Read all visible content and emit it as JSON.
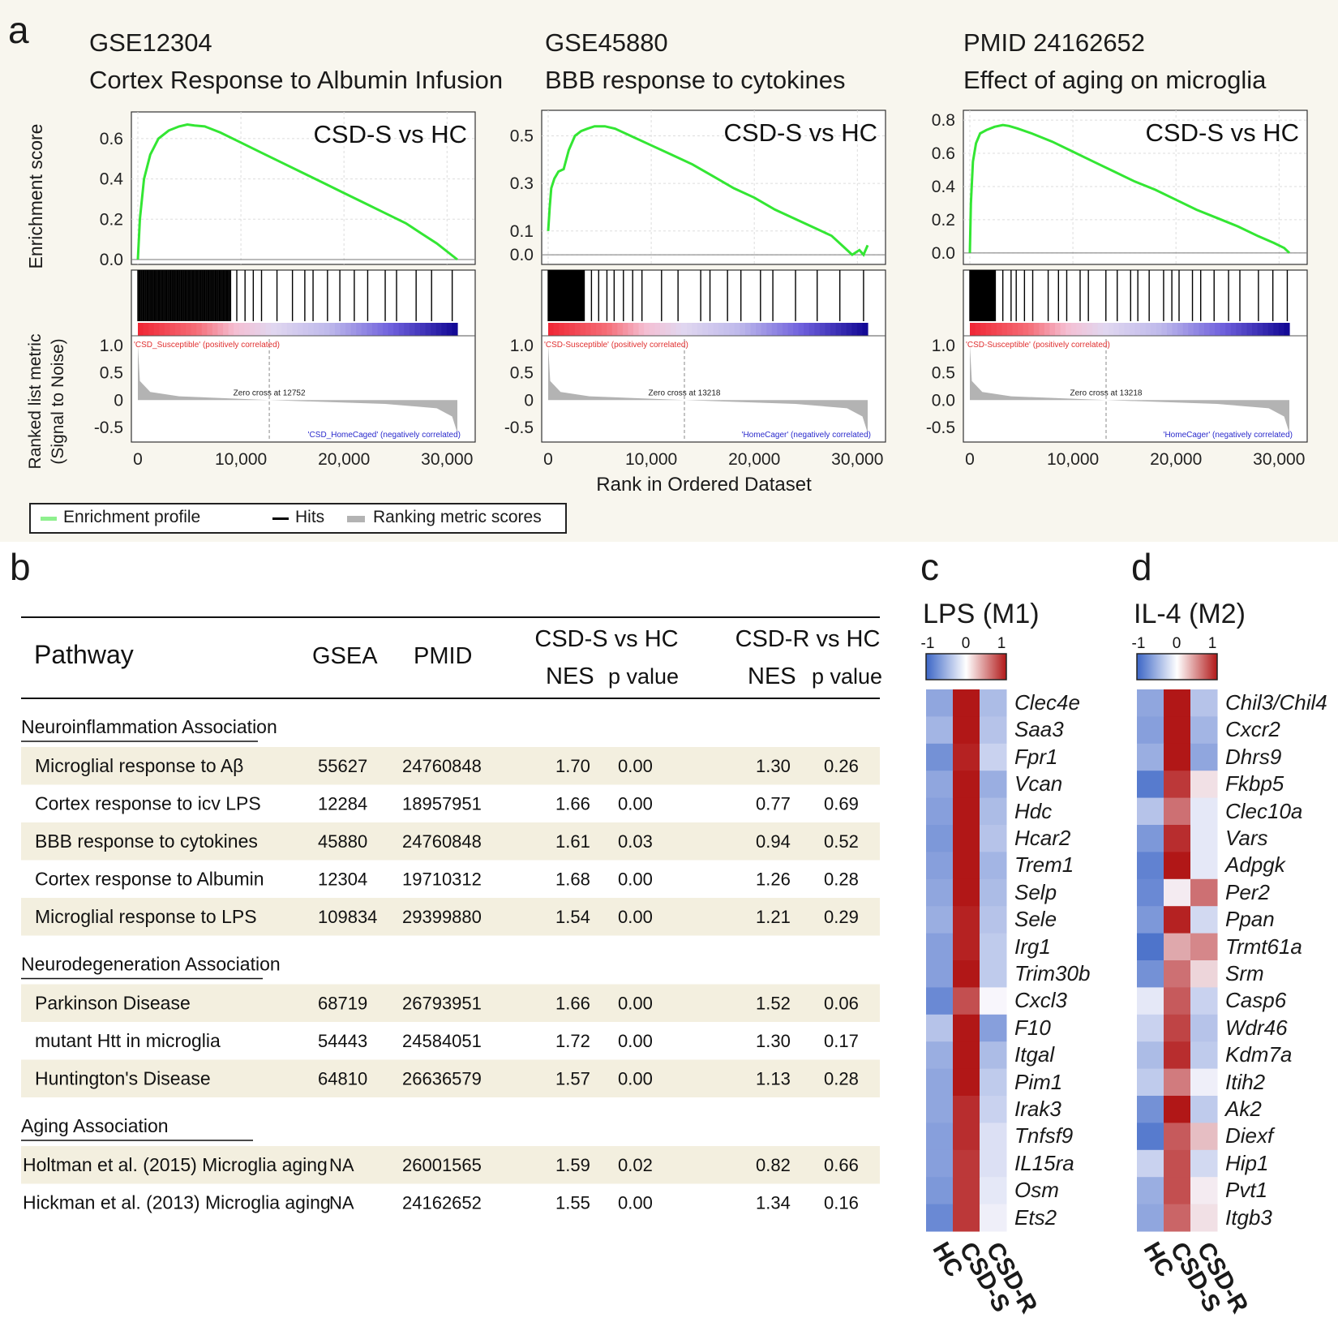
{
  "panels": {
    "a": {
      "letter": "a",
      "x_axis_label": "Rank in Ordered Dataset",
      "y_label_top": "Enrichment score",
      "y_label_bottom_1": "Ranked list metric",
      "y_label_bottom_2": "(Signal to Noise)",
      "legend": {
        "enrichment": "Enrichment profile",
        "hits": "Hits",
        "ranking": "Ranking metric scores"
      }
    },
    "b": {
      "letter": "b"
    },
    "c": {
      "letter": "c"
    },
    "d": {
      "letter": "d"
    }
  },
  "colors": {
    "enrichment": "#33e633",
    "hits": "#000000",
    "ranking": "#b3b3b3",
    "row_shade": "#f3efdf",
    "heat_neg": "#3b65c6",
    "heat_pos": "#b11717"
  },
  "chart_data": [
    {
      "type": "line",
      "id": "gsea-1",
      "title_line1": "GSE12304",
      "title_line2": "Cortex Response to Albumin Infusion",
      "comparison": "CSD-S vs HC",
      "xlabel": "Rank in Ordered Dataset",
      "ylabel": "Enrichment score",
      "xlim": [
        0,
        31000
      ],
      "x_ticks": [
        0,
        10000,
        20000,
        30000
      ],
      "x_tick_labels": [
        "0",
        "10,000",
        "20,000",
        "30,000"
      ],
      "es_ylim": [
        0,
        0.7
      ],
      "es_ticks": [
        0.0,
        0.2,
        0.4,
        0.6
      ],
      "es_tick_labels": [
        "0.0",
        "0.2",
        "0.4",
        "0.6"
      ],
      "es_curve": {
        "x": [
          0,
          200,
          600,
          1200,
          2000,
          3000,
          4000,
          4800,
          5500,
          6500,
          8000,
          10000,
          12000,
          14000,
          16000,
          18000,
          20000,
          22000,
          24000,
          26000,
          27500,
          29000,
          30500,
          31000
        ],
        "y": [
          0.0,
          0.2,
          0.4,
          0.52,
          0.6,
          0.64,
          0.66,
          0.67,
          0.665,
          0.66,
          0.63,
          0.58,
          0.53,
          0.48,
          0.43,
          0.38,
          0.33,
          0.28,
          0.23,
          0.18,
          0.13,
          0.08,
          0.02,
          0.0
        ]
      },
      "hits_dense_end": 9000,
      "hits_sparse": [
        9600,
        10400,
        11200,
        12000,
        13500,
        15000,
        16200,
        17000,
        18400,
        19600,
        21000,
        22300,
        24000,
        25100,
        27000,
        28500,
        30500
      ],
      "metric_ylim": [
        -0.5,
        1.0
      ],
      "metric_ticks": [
        1.0,
        0.5,
        0,
        -0.5
      ],
      "metric_tick_labels": [
        "1.0",
        "0.5",
        "0",
        "-0.5"
      ],
      "metric_pos_at_start": 1.0,
      "metric_neg_at_end": -0.6,
      "zero_cross": 12752,
      "zero_cross_label": "Zero cross at 12752",
      "pos_label": "'CSD_Susceptible' (positively correlated)",
      "neg_label": "'CSD_HomeCaged' (negatively correlated)"
    },
    {
      "type": "line",
      "id": "gsea-2",
      "title_line1": "GSE45880",
      "title_line2": "BBB response to cytokines",
      "comparison": "CSD-S vs HC",
      "xlabel": "Rank in Ordered Dataset",
      "ylabel": "Enrichment score",
      "xlim": [
        0,
        31000
      ],
      "x_ticks": [
        0,
        10000,
        20000,
        30000
      ],
      "x_tick_labels": [
        "0",
        "10,000",
        "20,000",
        "30,000"
      ],
      "es_ylim": [
        -0.02,
        0.58
      ],
      "es_ticks": [
        0.0,
        0.1,
        0.3,
        0.5
      ],
      "es_tick_labels": [
        "0.0",
        "0.1",
        "0.3",
        "0.5"
      ],
      "es_curve": {
        "x": [
          0,
          150,
          300,
          600,
          1000,
          1500,
          2000,
          2600,
          3200,
          3800,
          4500,
          5500,
          6500,
          8000,
          10000,
          12000,
          14000,
          16000,
          18000,
          20000,
          22000,
          24000,
          26000,
          27500,
          28500,
          29500,
          30200,
          30600,
          31000
        ],
        "y": [
          0.1,
          0.2,
          0.28,
          0.32,
          0.35,
          0.36,
          0.44,
          0.5,
          0.52,
          0.53,
          0.54,
          0.54,
          0.53,
          0.5,
          0.46,
          0.42,
          0.38,
          0.33,
          0.28,
          0.24,
          0.19,
          0.15,
          0.11,
          0.08,
          0.04,
          0.0,
          0.02,
          0.0,
          0.04
        ]
      },
      "hits_dense_end": 3500,
      "hits_sparse": [
        4200,
        4900,
        5700,
        6400,
        7300,
        8200,
        9100,
        11000,
        12600,
        14800,
        15700,
        17400,
        18700,
        20600,
        21800,
        24000,
        26100,
        28300,
        30600
      ],
      "metric_ylim": [
        -0.5,
        1.0
      ],
      "metric_ticks": [
        1.0,
        0.5,
        0,
        -0.5
      ],
      "metric_tick_labels": [
        "1.0",
        "0.5",
        "0",
        "-0.5"
      ],
      "metric_pos_at_start": 1.0,
      "metric_neg_at_end": -0.6,
      "zero_cross": 13218,
      "zero_cross_label": "Zero cross at 13218",
      "pos_label": "'CSD-Susceptible' (positively correlated)",
      "neg_label": "'HomeCager' (negatively correlated)"
    },
    {
      "type": "line",
      "id": "gsea-3",
      "title_line1": "PMID 24162652",
      "title_line2": "Effect of aging on microglia",
      "comparison": "CSD-S vs HC",
      "xlabel": "Rank in Ordered Dataset",
      "ylabel": "Enrichment score",
      "xlim": [
        0,
        31000
      ],
      "x_ticks": [
        0,
        10000,
        20000,
        30000
      ],
      "x_tick_labels": [
        "0",
        "10,000",
        "20,000",
        "30,000"
      ],
      "es_ylim": [
        -0.04,
        0.82
      ],
      "es_ticks": [
        0.0,
        0.2,
        0.4,
        0.6,
        0.8
      ],
      "es_tick_labels": [
        "0.0",
        "0.2",
        "0.4",
        "0.6",
        "0.8"
      ],
      "es_curve": {
        "x": [
          0,
          100,
          300,
          600,
          1000,
          1600,
          2400,
          3200,
          3800,
          4600,
          6000,
          8000,
          10000,
          12000,
          14000,
          16000,
          18000,
          20000,
          22000,
          24000,
          26000,
          28000,
          29500,
          30500,
          31000
        ],
        "y": [
          0.0,
          0.3,
          0.55,
          0.66,
          0.72,
          0.74,
          0.76,
          0.77,
          0.765,
          0.75,
          0.72,
          0.67,
          0.61,
          0.55,
          0.49,
          0.43,
          0.38,
          0.32,
          0.26,
          0.21,
          0.16,
          0.1,
          0.06,
          0.03,
          0.0
        ]
      },
      "hits_dense_end": 2500,
      "hits_sparse": [
        3200,
        4000,
        4500,
        5300,
        6100,
        7600,
        8600,
        9400,
        10700,
        11500,
        13200,
        14300,
        15600,
        16300,
        17400,
        18800,
        19600,
        20300,
        21600,
        22400,
        23700,
        25100,
        26200,
        28000,
        29400,
        30800
      ],
      "metric_ylim": [
        -0.5,
        1.0
      ],
      "metric_ticks": [
        1.0,
        0.5,
        0.0,
        -0.5
      ],
      "metric_tick_labels": [
        "1.0",
        "0.5",
        "0.0",
        "-0.5"
      ],
      "metric_pos_at_start": 1.0,
      "metric_neg_at_end": -0.6,
      "zero_cross": 13218,
      "zero_cross_label": "Zero cross at 13218",
      "pos_label": "'CSD-Susceptible' (positively correlated)",
      "neg_label": "'HomeCager' (negatively correlated)"
    },
    {
      "type": "table",
      "id": "pathway-table",
      "headers": {
        "pathway": "Pathway",
        "gsea": "GSEA",
        "pmid": "PMID",
        "group_s": "CSD-S vs HC",
        "group_r": "CSD-R vs HC",
        "nes": "NES",
        "pval": "p value"
      },
      "sections": [
        {
          "title": "Neuroinflammation Association",
          "rows": [
            {
              "pathway": "Microglial response to Aβ",
              "gsea": "55627",
              "pmid": "24760848",
              "nes_s": "1.70",
              "p_s": "0.00",
              "nes_r": "1.30",
              "p_r": "0.26"
            },
            {
              "pathway": "Cortex response to icv LPS",
              "gsea": "12284",
              "pmid": "18957951",
              "nes_s": "1.66",
              "p_s": "0.00",
              "nes_r": "0.77",
              "p_r": "0.69"
            },
            {
              "pathway": "BBB response to cytokines",
              "gsea": "45880",
              "pmid": "24760848",
              "nes_s": "1.61",
              "p_s": "0.03",
              "nes_r": "0.94",
              "p_r": "0.52"
            },
            {
              "pathway": "Cortex response to Albumin",
              "gsea": "12304",
              "pmid": "19710312",
              "nes_s": "1.68",
              "p_s": "0.00",
              "nes_r": "1.26",
              "p_r": "0.28"
            },
            {
              "pathway": "Microglial response to LPS",
              "gsea": "109834",
              "pmid": "29399880",
              "nes_s": "1.54",
              "p_s": "0.00",
              "nes_r": "1.21",
              "p_r": "0.29"
            }
          ]
        },
        {
          "title": "Neurodegeneration Association",
          "rows": [
            {
              "pathway": "Parkinson Disease",
              "gsea": "68719",
              "pmid": "26793951",
              "nes_s": "1.66",
              "p_s": "0.00",
              "nes_r": "1.52",
              "p_r": "0.06"
            },
            {
              "pathway": "mutant Htt in microglia",
              "gsea": "54443",
              "pmid": "24584051",
              "nes_s": "1.72",
              "p_s": "0.00",
              "nes_r": "1.30",
              "p_r": "0.17"
            },
            {
              "pathway": "Huntington's Disease",
              "gsea": "64810",
              "pmid": "26636579",
              "nes_s": "1.57",
              "p_s": "0.00",
              "nes_r": "1.13",
              "p_r": "0.28"
            }
          ]
        },
        {
          "title": "Aging Association",
          "rows": [
            {
              "pathway": "Holtman et al. (2015) Microglia aging",
              "gsea": "NA",
              "pmid": "26001565",
              "nes_s": "1.59",
              "p_s": "0.02",
              "nes_r": "0.82",
              "p_r": "0.66"
            },
            {
              "pathway": "Hickman et al. (2013) Microglia aging",
              "gsea": "NA",
              "pmid": "24162652",
              "nes_s": "1.55",
              "p_s": "0.00",
              "nes_r": "1.34",
              "p_r": "0.16"
            }
          ]
        }
      ]
    },
    {
      "type": "heatmap",
      "id": "heatmap-lps",
      "title": "LPS (M1)",
      "scale_min": "-1",
      "scale_mid": "0",
      "scale_max": "1",
      "columns": [
        "HC",
        "CSD-S",
        "CSD-R"
      ],
      "genes": [
        "Clec4e",
        "Saa3",
        "Fpr1",
        "Vcan",
        "Hdc",
        "Hcar2",
        "Trem1",
        "Selp",
        "Sele",
        "Irg1",
        "Trim30b",
        "Cxcl3",
        "F10",
        "Itgal",
        "Pim1",
        "Irak3",
        "Tnfsf9",
        "IL15ra",
        "Osm",
        "Ets2"
      ],
      "values": [
        [
          -0.55,
          1.0,
          -0.4
        ],
        [
          -0.45,
          1.0,
          -0.35
        ],
        [
          -0.7,
          0.95,
          -0.25
        ],
        [
          -0.55,
          1.0,
          -0.5
        ],
        [
          -0.6,
          1.0,
          -0.4
        ],
        [
          -0.65,
          1.0,
          -0.35
        ],
        [
          -0.6,
          1.0,
          -0.45
        ],
        [
          -0.55,
          1.0,
          -0.4
        ],
        [
          -0.5,
          0.95,
          -0.35
        ],
        [
          -0.6,
          0.95,
          -0.3
        ],
        [
          -0.6,
          1.0,
          -0.3
        ],
        [
          -0.75,
          0.75,
          0.0
        ],
        [
          -0.35,
          1.0,
          -0.6
        ],
        [
          -0.5,
          1.0,
          -0.4
        ],
        [
          -0.55,
          1.0,
          -0.3
        ],
        [
          -0.55,
          0.9,
          -0.25
        ],
        [
          -0.6,
          0.9,
          -0.15
        ],
        [
          -0.6,
          0.85,
          -0.15
        ],
        [
          -0.65,
          0.85,
          -0.1
        ],
        [
          -0.75,
          0.85,
          -0.05
        ]
      ]
    },
    {
      "type": "heatmap",
      "id": "heatmap-il4",
      "title": "IL-4 (M2)",
      "scale_min": "-1",
      "scale_mid": "0",
      "scale_max": "1",
      "columns": [
        "HC",
        "CSD-S",
        "CSD-R"
      ],
      "genes": [
        "Chil3/Chil4",
        "Cxcr2",
        "Dhrs9",
        "Fkbp5",
        "Clec10a",
        "Vars",
        "Adpgk",
        "Per2",
        "Ppan",
        "Trmt61a",
        "Srm",
        "Casp6",
        "Wdr46",
        "Kdm7a",
        "Itih2",
        "Ak2",
        "Diexf",
        "Hip1",
        "Pvt1",
        "Itgb3"
      ],
      "values": [
        [
          -0.55,
          1.0,
          -0.35
        ],
        [
          -0.6,
          1.0,
          -0.45
        ],
        [
          -0.5,
          1.0,
          -0.55
        ],
        [
          -0.85,
          0.85,
          0.1
        ],
        [
          -0.35,
          0.6,
          -0.1
        ],
        [
          -0.65,
          0.9,
          -0.1
        ],
        [
          -0.8,
          1.0,
          -0.1
        ],
        [
          -0.75,
          0.05,
          0.6
        ],
        [
          -0.65,
          0.95,
          -0.2
        ],
        [
          -0.9,
          0.35,
          0.5
        ],
        [
          -0.7,
          0.6,
          0.15
        ],
        [
          -0.1,
          0.7,
          -0.25
        ],
        [
          -0.25,
          0.8,
          -0.35
        ],
        [
          -0.4,
          0.9,
          -0.3
        ],
        [
          -0.3,
          0.55,
          -0.05
        ],
        [
          -0.7,
          1.0,
          -0.3
        ],
        [
          -0.85,
          0.7,
          0.25
        ],
        [
          -0.25,
          0.75,
          -0.2
        ],
        [
          -0.5,
          0.75,
          0.05
        ],
        [
          -0.55,
          0.65,
          0.1
        ]
      ]
    }
  ]
}
